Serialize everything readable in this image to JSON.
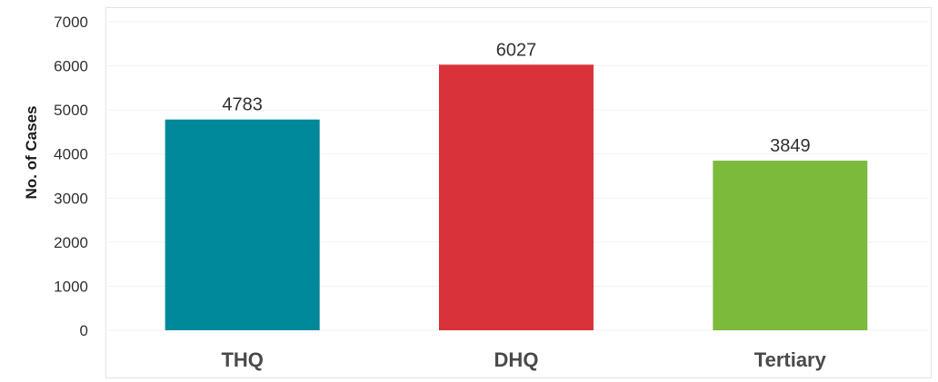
{
  "chart_data": {
    "type": "bar",
    "title": "",
    "xlabel": "",
    "ylabel": "No. of Cases",
    "categories": [
      "THQ",
      "DHQ",
      "Tertiary"
    ],
    "values": [
      4783,
      6027,
      3849
    ],
    "value_labels": [
      "4783",
      "6027",
      "3849"
    ],
    "colors": [
      "#00899a",
      "#d9323b",
      "#7cba3c"
    ],
    "ylim": [
      0,
      7000
    ],
    "yticks": [
      0,
      1000,
      2000,
      3000,
      4000,
      5000,
      6000,
      7000
    ],
    "ytick_labels": [
      "0",
      "1000",
      "2000",
      "3000",
      "4000",
      "5000",
      "6000",
      "7000"
    ],
    "grid": true,
    "legend": "none"
  }
}
